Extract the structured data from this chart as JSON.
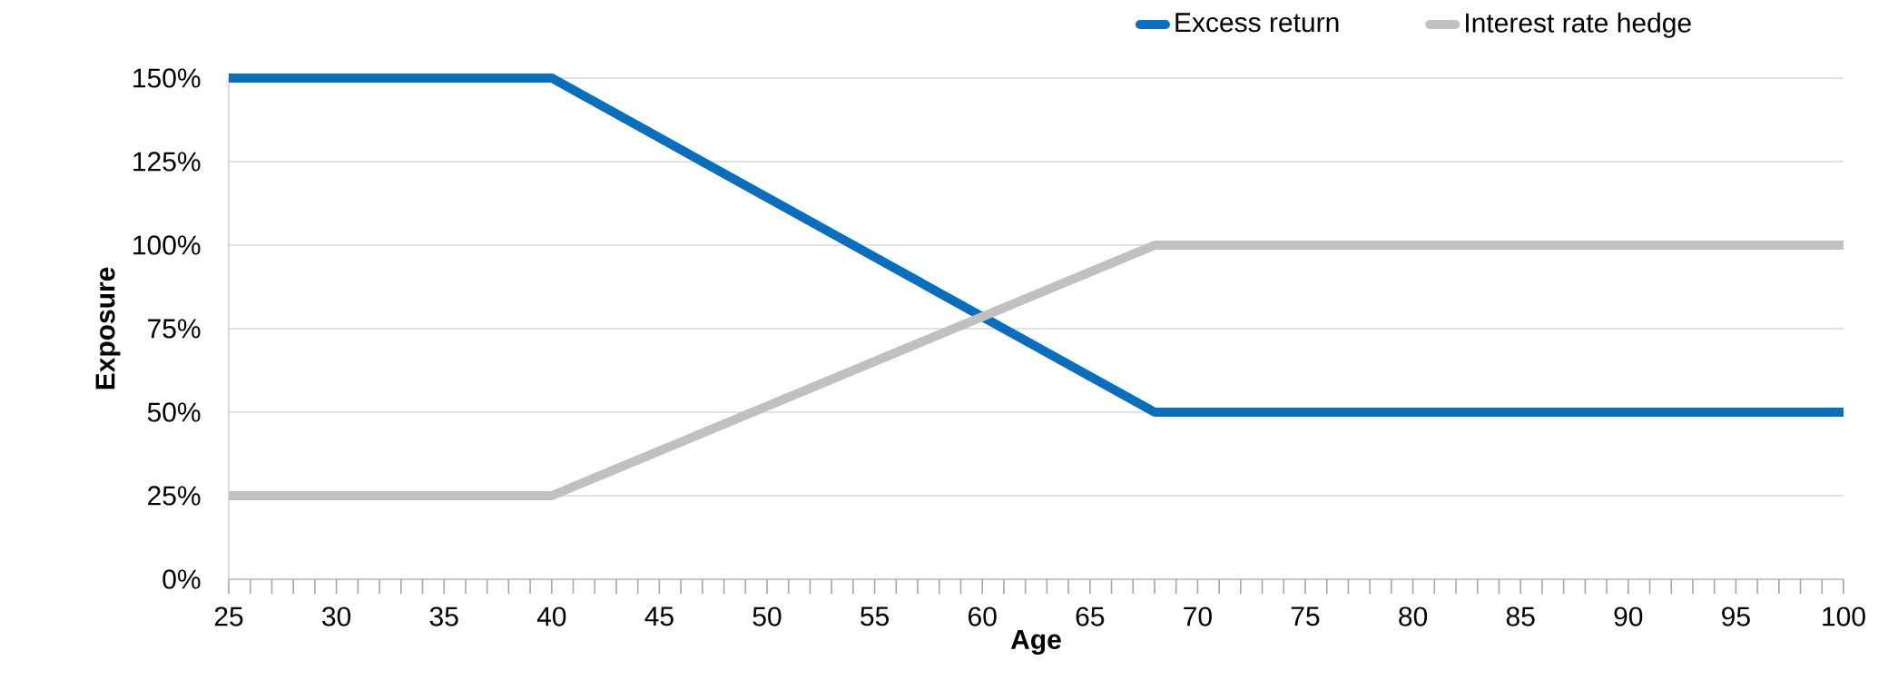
{
  "chart_data": {
    "type": "line",
    "xlabel": "Age",
    "ylabel": "Exposure",
    "x": [
      25,
      40,
      68,
      100
    ],
    "series": [
      {
        "name": "Excess return",
        "color": "#0a6ebd",
        "values": [
          150,
          150,
          50,
          50
        ]
      },
      {
        "name": "Interest rate hedge",
        "color": "#c0c0c0",
        "values": [
          25,
          25,
          100,
          100
        ]
      }
    ],
    "xlim": [
      25,
      100
    ],
    "ylim": [
      0,
      150
    ],
    "xticks": [
      25,
      {
        "value": 26,
        "label": null
      },
      {
        "value": 27,
        "label": null
      },
      {
        "value": 28,
        "label": null
      },
      {
        "value": 29,
        "label": null
      },
      30,
      {
        "value": 31,
        "label": null
      },
      {
        "value": 32,
        "label": null
      },
      {
        "value": 33,
        "label": null
      },
      {
        "value": 34,
        "label": null
      },
      35,
      {
        "value": 36,
        "label": null
      },
      {
        "value": 37,
        "label": null
      },
      {
        "value": 38,
        "label": null
      },
      {
        "value": 39,
        "label": null
      },
      40,
      {
        "value": 41,
        "label": null
      },
      {
        "value": 42,
        "label": null
      },
      {
        "value": 43,
        "label": null
      },
      {
        "value": 44,
        "label": null
      },
      45,
      {
        "value": 46,
        "label": null
      },
      {
        "value": 47,
        "label": null
      },
      {
        "value": 48,
        "label": null
      },
      {
        "value": 49,
        "label": null
      },
      50,
      {
        "value": 51,
        "label": null
      },
      {
        "value": 52,
        "label": null
      },
      {
        "value": 53,
        "label": null
      },
      {
        "value": 54,
        "label": null
      },
      55,
      {
        "value": 56,
        "label": null
      },
      {
        "value": 57,
        "label": null
      },
      {
        "value": 58,
        "label": null
      },
      {
        "value": 59,
        "label": null
      },
      60,
      {
        "value": 61,
        "label": null
      },
      {
        "value": 62,
        "label": null
      },
      {
        "value": 63,
        "label": null
      },
      {
        "value": 64,
        "label": null
      },
      65,
      {
        "value": 66,
        "label": null
      },
      {
        "value": 67,
        "label": null
      },
      {
        "value": 68,
        "label": null
      },
      {
        "value": 69,
        "label": null
      },
      70,
      {
        "value": 71,
        "label": null
      },
      {
        "value": 72,
        "label": null
      },
      {
        "value": 73,
        "label": null
      },
      {
        "value": 74,
        "label": null
      },
      75,
      {
        "value": 76,
        "label": null
      },
      {
        "value": 77,
        "label": null
      },
      {
        "value": 78,
        "label": null
      },
      {
        "value": 79,
        "label": null
      },
      80,
      {
        "value": 81,
        "label": null
      },
      {
        "value": 82,
        "label": null
      },
      {
        "value": 83,
        "label": null
      },
      {
        "value": 84,
        "label": null
      },
      85,
      {
        "value": 86,
        "label": null
      },
      {
        "value": 87,
        "label": null
      },
      {
        "value": 88,
        "label": null
      },
      {
        "value": 89,
        "label": null
      },
      90,
      {
        "value": 91,
        "label": null
      },
      {
        "value": 92,
        "label": null
      },
      {
        "value": 93,
        "label": null
      },
      {
        "value": 94,
        "label": null
      },
      95,
      {
        "value": 96,
        "label": null
      },
      {
        "value": 97,
        "label": null
      },
      {
        "value": 98,
        "label": null
      },
      {
        "value": 99,
        "label": null
      },
      100
    ],
    "yticks": [
      {
        "value": 0,
        "label": "0%"
      },
      {
        "value": 25,
        "label": "25%"
      },
      {
        "value": 50,
        "label": "50%"
      },
      {
        "value": 75,
        "label": "75%"
      },
      {
        "value": 100,
        "label": "100%"
      },
      {
        "value": 125,
        "label": "125%"
      },
      {
        "value": 150,
        "label": "150%"
      }
    ],
    "grid": "y",
    "legend": "top",
    "marker": "none",
    "line_style": "solid"
  }
}
